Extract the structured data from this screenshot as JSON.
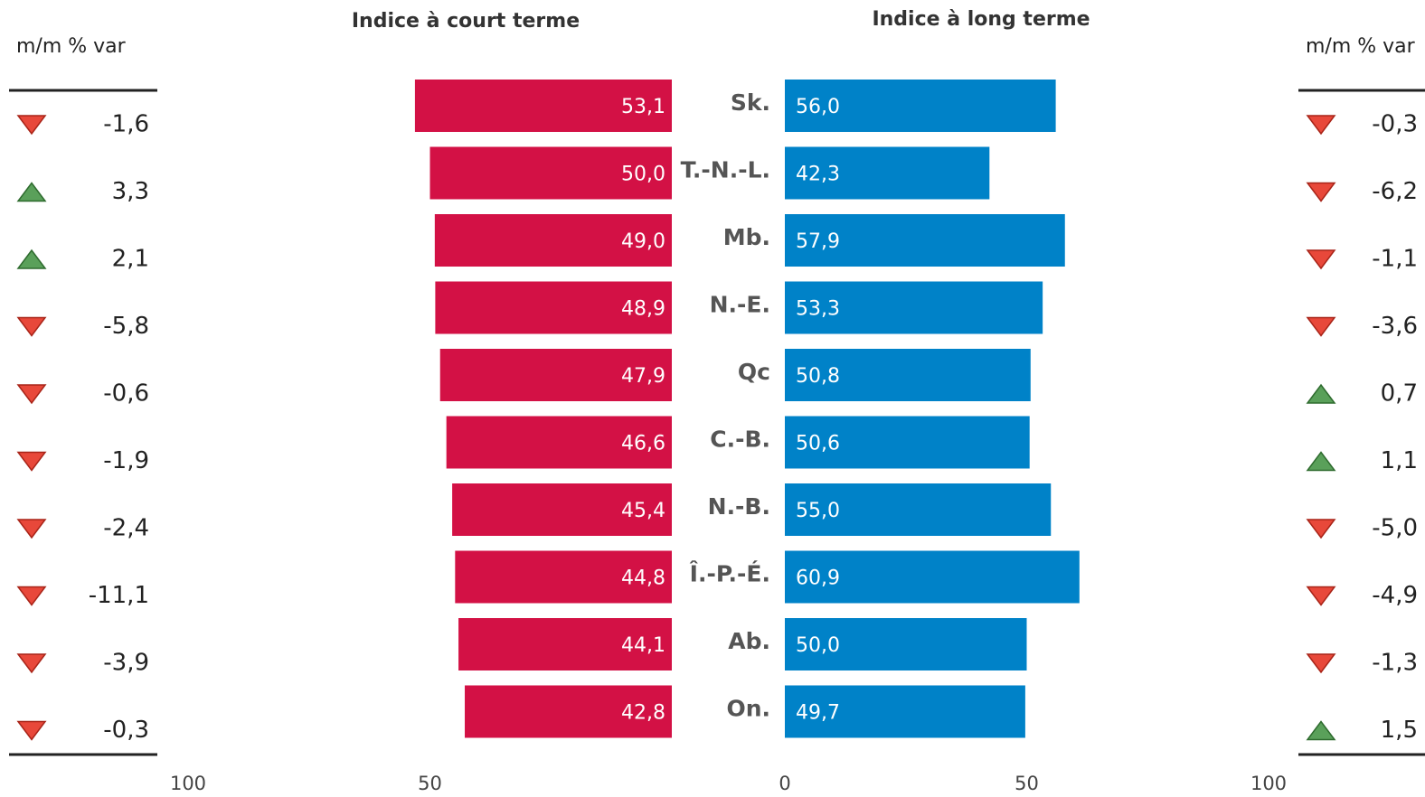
{
  "chart_data": {
    "type": "butterfly",
    "categories": [
      "Sk.",
      "T.-N.-L.",
      "Mb.",
      "N.-E.",
      "Qc",
      "C.-B.",
      "N.-B.",
      "Î.-P.-É.",
      "Ab.",
      "On."
    ],
    "series": [
      {
        "name": "Indice à court terme",
        "color": "#d31145",
        "side": "left",
        "values": [
          53.1,
          50.0,
          49.0,
          48.9,
          47.9,
          46.6,
          45.4,
          44.8,
          44.1,
          42.8
        ],
        "value_labels": [
          "53,1",
          "50,0",
          "49,0",
          "48,9",
          "47,9",
          "46,6",
          "45,4",
          "44,8",
          "44,1",
          "42,8"
        ]
      },
      {
        "name": "Indice à long terme",
        "color": "#0082c8",
        "side": "right",
        "values": [
          56.0,
          42.3,
          57.9,
          53.3,
          50.8,
          50.6,
          55.0,
          60.9,
          50.0,
          49.7
        ],
        "value_labels": [
          "56,0",
          "42,3",
          "57,9",
          "53,3",
          "50,8",
          "50,6",
          "55,0",
          "60,9",
          "50,0",
          "49,7"
        ]
      }
    ],
    "xlim": [
      0,
      100
    ],
    "left_xticks": [
      100,
      50
    ],
    "right_xticks": [
      0,
      50,
      100
    ],
    "changes": [
      {
        "title": "m/m % var",
        "side": "left",
        "values": [
          -1.6,
          3.3,
          2.1,
          -5.8,
          -0.6,
          -1.9,
          -2.4,
          -11.1,
          -3.9,
          -0.3
        ],
        "value_labels": [
          "-1,6",
          "3,3",
          "2,1",
          "-5,8",
          "-0,6",
          "-1,9",
          "-2,4",
          "-11,1",
          "-3,9",
          "-0,3"
        ]
      },
      {
        "title": "m/m % var",
        "side": "right",
        "values": [
          -0.3,
          -6.2,
          -1.1,
          -3.6,
          0.7,
          1.1,
          -5.0,
          -4.9,
          -1.3,
          1.5
        ],
        "value_labels": [
          "-0,3",
          "-6,2",
          "-1,1",
          "-3,6",
          "0,7",
          "1,1",
          "-5,0",
          "-4,9",
          "-1,3",
          "1,5"
        ]
      }
    ],
    "up_color": "#5aa05a",
    "down_color": "#e8483a"
  }
}
